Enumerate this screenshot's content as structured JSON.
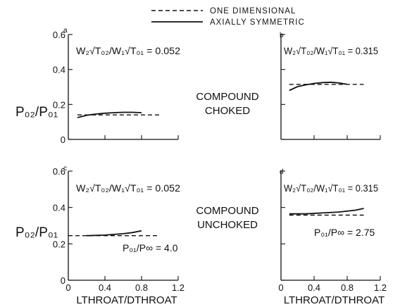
{
  "legend": {
    "one_dimensional": "ONE DIMENSIONAL",
    "axially_symmetric": "AXIALLY SYMMETRIC"
  },
  "center_labels": {
    "top": [
      "COMPOUND",
      "CHOKED"
    ],
    "bottom": [
      "COMPOUND",
      "UNCHOKED"
    ]
  },
  "chart_data": [
    {
      "type": "line",
      "panel_label": "a",
      "annotation": "W₂√T₀₂/W₁√T₀₁ = 0.052",
      "ylabel": "P₀₂/P₀₁",
      "xlabel": "",
      "xlim": [
        0,
        1.2
      ],
      "ylim": [
        0,
        0.6
      ],
      "x_ticks": [],
      "y_ticks": [
        "0",
        "0.2",
        "0.4",
        "0.6"
      ],
      "series": [
        {
          "style": "dashed",
          "x": [
            0.1,
            1.0
          ],
          "y": [
            0.14,
            0.14
          ]
        },
        {
          "style": "solid",
          "x": [
            0.1,
            0.2,
            0.3,
            0.4,
            0.5,
            0.6,
            0.7,
            0.8
          ],
          "y": [
            0.125,
            0.138,
            0.145,
            0.15,
            0.153,
            0.155,
            0.155,
            0.153
          ]
        }
      ]
    },
    {
      "type": "line",
      "panel_label": "b",
      "annotation": "W₂√T₀₂/W₁√T₀₁ = 0.315",
      "ylabel": "",
      "xlabel": "",
      "xlim": [
        0,
        1.2
      ],
      "ylim": [
        0,
        0.6
      ],
      "x_ticks": [],
      "y_ticks": [],
      "series": [
        {
          "style": "dashed",
          "x": [
            0.1,
            1.0
          ],
          "y": [
            0.315,
            0.315
          ]
        },
        {
          "style": "solid",
          "x": [
            0.1,
            0.2,
            0.3,
            0.4,
            0.5,
            0.6,
            0.7,
            0.8
          ],
          "y": [
            0.28,
            0.302,
            0.312,
            0.32,
            0.325,
            0.327,
            0.323,
            0.315
          ]
        }
      ]
    },
    {
      "type": "line",
      "panel_label": "c",
      "annotation": "W₂√T₀₂/W₁√T₀₁ = 0.052",
      "annotation2": "P₀₁/P∞ = 4.0",
      "ylabel": "P₀₂/P₀₁",
      "xlabel": "LTHROAT/DTHROAT",
      "xlim": [
        0,
        1.2
      ],
      "ylim": [
        0,
        0.6
      ],
      "x_ticks": [
        "0",
        "0.4",
        "0.8",
        "1.2"
      ],
      "y_ticks": [
        "0",
        "0.2",
        "0.4",
        "0.6"
      ],
      "series": [
        {
          "style": "dashed",
          "x": [
            0.0,
            1.0
          ],
          "y": [
            0.245,
            0.245
          ]
        },
        {
          "style": "solid",
          "x": [
            0.2,
            0.4,
            0.6,
            0.7,
            0.8
          ],
          "y": [
            0.245,
            0.248,
            0.256,
            0.262,
            0.272
          ]
        }
      ]
    },
    {
      "type": "line",
      "panel_label": "d",
      "annotation": "W₂√T₀₂/W₁√T₀₁ = 0.315",
      "annotation2": "P₀₁/P∞ = 2.75",
      "ylabel": "",
      "xlabel": "LTHROAT/DTHROAT",
      "xlim": [
        0,
        1.2
      ],
      "ylim": [
        0,
        0.6
      ],
      "x_ticks": [
        "0",
        "0.4",
        "0.8",
        "1.2"
      ],
      "y_ticks": [],
      "series": [
        {
          "style": "dashed",
          "x": [
            0.1,
            1.0
          ],
          "y": [
            0.358,
            0.358
          ]
        },
        {
          "style": "solid",
          "x": [
            0.1,
            0.3,
            0.5,
            0.7,
            0.9,
            1.0
          ],
          "y": [
            0.365,
            0.365,
            0.37,
            0.375,
            0.385,
            0.395
          ]
        }
      ]
    }
  ]
}
